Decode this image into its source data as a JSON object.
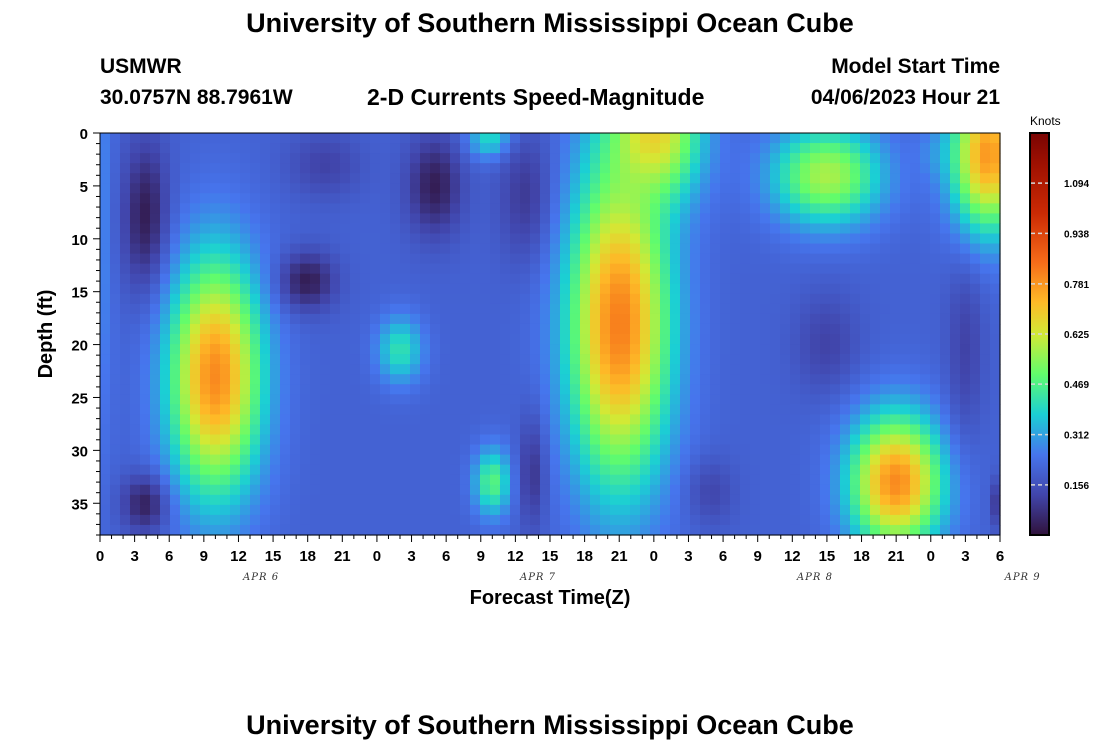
{
  "header": {
    "title": "University of Southern Mississippi Ocean Cube",
    "station": "USMWR",
    "coords": "30.0757N  88.7961W",
    "subtitle": "2-D Currents Speed-Magnitude",
    "model_start_label": "Model Start Time",
    "model_start_value": "04/06/2023 Hour 21"
  },
  "footer": {
    "title": "University of Southern Mississippi Ocean Cube"
  },
  "chart_data": {
    "type": "heatmap",
    "xlabel": "Forecast Time(Z)",
    "ylabel": "Depth (ft)",
    "x_ticks": [
      "0",
      "3",
      "6",
      "9",
      "12",
      "15",
      "18",
      "21",
      "0",
      "3",
      "6",
      "9",
      "12",
      "15",
      "18",
      "21",
      "0",
      "3",
      "6",
      "9",
      "12",
      "15",
      "18",
      "21",
      "0",
      "3",
      "6"
    ],
    "date_labels": [
      {
        "text": "APR 6",
        "x_index": 5
      },
      {
        "text": "APR 7",
        "x_index": 13
      },
      {
        "text": "APR 8",
        "x_index": 21
      },
      {
        "text": "APR 9",
        "x_index": 27
      }
    ],
    "y_ticks": [
      0,
      5,
      10,
      15,
      20,
      25,
      30,
      35
    ],
    "y_range": [
      0,
      38
    ],
    "colorbar": {
      "label": "Knots",
      "ticks": [
        "1.094",
        "0.938",
        "0.781",
        "0.625",
        "0.469",
        "0.312",
        "0.156"
      ],
      "range": [
        0,
        1.25
      ]
    },
    "blobs": [
      {
        "t": 0,
        "d": 8,
        "rt": 1.5,
        "rd": 30,
        "v": 0.28
      },
      {
        "t": 4,
        "d": 8,
        "rt": 2.5,
        "rd": 9,
        "v": 0.02
      },
      {
        "t": 4,
        "d": 35,
        "rt": 2.5,
        "rd": 3.5,
        "v": 0.02
      },
      {
        "t": 10,
        "d": 23,
        "rt": 5,
        "rd": 14,
        "v": 0.8
      },
      {
        "t": 18,
        "d": 14,
        "rt": 3,
        "rd": 3.5,
        "v": 0.03
      },
      {
        "t": 19.5,
        "d": 3,
        "rt": 4,
        "rd": 4,
        "v": 0.12
      },
      {
        "t": 26,
        "d": 20.5,
        "rt": 2.5,
        "rd": 4,
        "v": 0.42
      },
      {
        "t": 29,
        "d": 5,
        "rt": 3,
        "rd": 6,
        "v": 0.03
      },
      {
        "t": 34,
        "d": 0.5,
        "rt": 2.5,
        "rd": 2.5,
        "v": 0.42
      },
      {
        "t": 34,
        "d": 33,
        "rt": 2,
        "rd": 4,
        "v": 0.48
      },
      {
        "t": 37,
        "d": 6,
        "rt": 3,
        "rd": 8,
        "v": 0.09
      },
      {
        "t": 37.5,
        "d": 32,
        "rt": 1.5,
        "rd": 7,
        "v": 0.08
      },
      {
        "t": 45,
        "d": 18,
        "rt": 5.5,
        "rd": 19,
        "v": 0.82
      },
      {
        "t": 48,
        "d": 0,
        "rt": 5,
        "rd": 8,
        "v": 0.68
      },
      {
        "t": 53,
        "d": 34,
        "rt": 2.5,
        "rd": 4,
        "v": 0.13
      },
      {
        "t": 63,
        "d": 4,
        "rt": 6,
        "rd": 6,
        "v": 0.58
      },
      {
        "t": 63,
        "d": 20,
        "rt": 3.5,
        "rd": 6,
        "v": 0.12
      },
      {
        "t": 69,
        "d": 33,
        "rt": 5,
        "rd": 8,
        "v": 0.8
      },
      {
        "t": 72,
        "d": 2,
        "rt": 2,
        "rd": 3,
        "v": 0.25
      },
      {
        "t": 75,
        "d": 20,
        "rt": 2,
        "rd": 11,
        "v": 0.12
      },
      {
        "t": 77,
        "d": 2,
        "rt": 4,
        "rd": 9,
        "v": 0.78
      },
      {
        "t": 78,
        "d": 35,
        "rt": 1,
        "rd": 3,
        "v": 0.08
      }
    ],
    "background_value": 0.2
  }
}
